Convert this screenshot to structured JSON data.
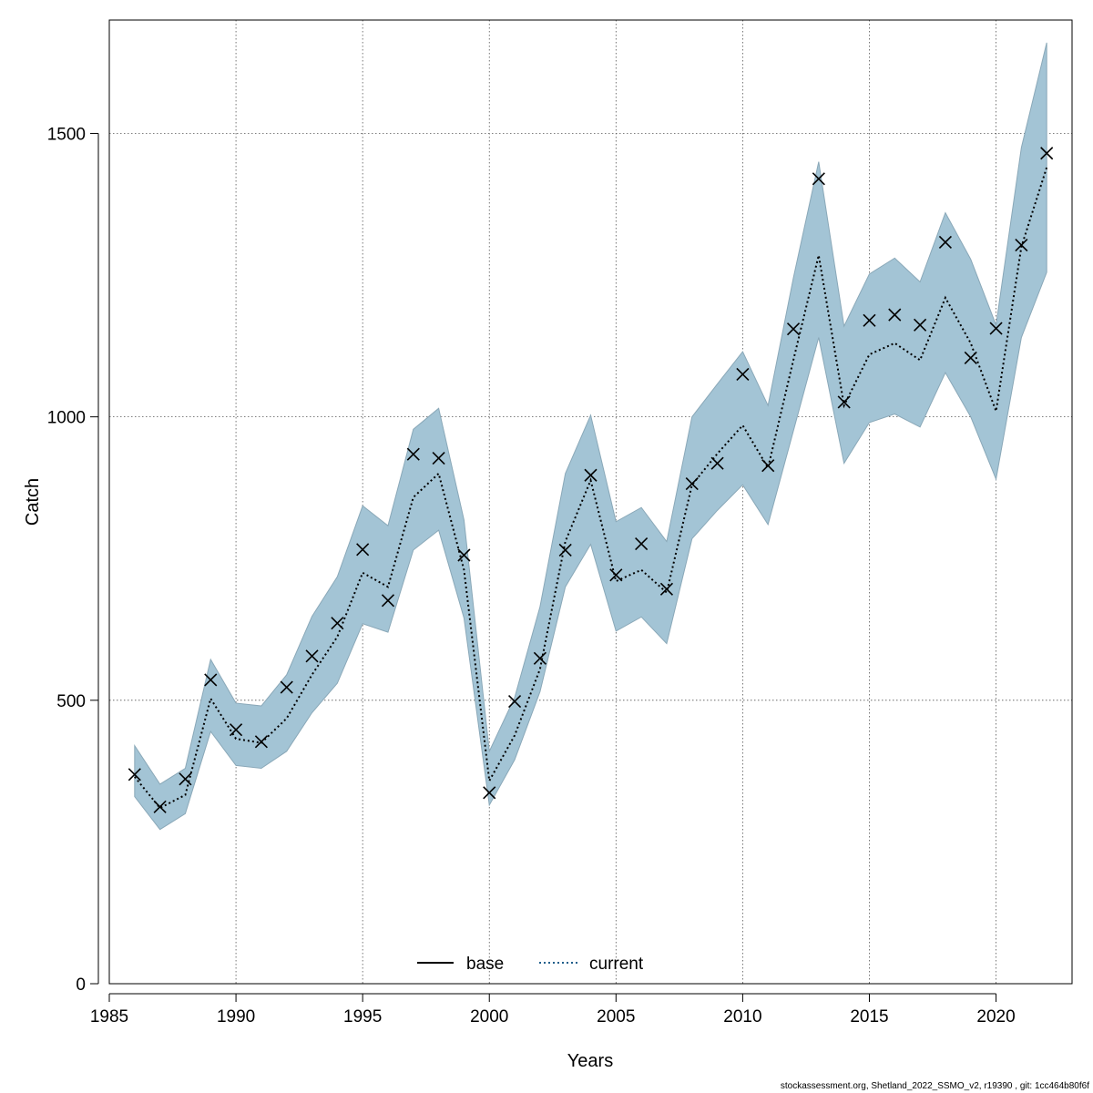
{
  "chart_data": {
    "type": "line",
    "title": "",
    "xlabel": "Years",
    "ylabel": "Catch",
    "xlim": [
      1985,
      2023
    ],
    "ylim": [
      0,
      1700
    ],
    "x_ticks": [
      1985,
      1990,
      1995,
      2000,
      2005,
      2010,
      2015,
      2020
    ],
    "y_ticks": [
      0,
      500,
      1000,
      1500
    ],
    "x_tick_labels": [
      "1985",
      "1990",
      "1995",
      "2000",
      "2005",
      "2010",
      "2015",
      "2020"
    ],
    "y_tick_labels": [
      "0",
      "500",
      "1000",
      "1500"
    ],
    "grid": true,
    "legend_position": "bottom-center",
    "legend": [
      {
        "name": "base",
        "style": "solid",
        "color": "#000000"
      },
      {
        "name": "current",
        "style": "dotted",
        "color": "#1f5f8b"
      }
    ],
    "colors": {
      "band": "#a3c4d5",
      "band_edge": "#8aa8b8",
      "line": "#000000",
      "current": "#1f5f8b",
      "marker": "#000000"
    },
    "x": [
      1986,
      1987,
      1988,
      1989,
      1990,
      1991,
      1992,
      1993,
      1994,
      1995,
      1996,
      1997,
      1998,
      1999,
      2000,
      2001,
      2002,
      2003,
      2004,
      2005,
      2006,
      2007,
      2008,
      2009,
      2010,
      2011,
      2012,
      2013,
      2014,
      2015,
      2016,
      2017,
      2018,
      2019,
      2020,
      2021,
      2022
    ],
    "series": [
      {
        "name": "current",
        "type": "line",
        "values": [
          365,
          310,
          333,
          503,
          432,
          425,
          468,
          545,
          612,
          725,
          700,
          858,
          900,
          730,
          358,
          438,
          555,
          780,
          888,
          710,
          730,
          690,
          880,
          935,
          985,
          910,
          1100,
          1285,
          1020,
          1110,
          1130,
          1100,
          1210,
          1130,
          1010,
          1300,
          1440
        ]
      },
      {
        "name": "observed",
        "type": "scatter",
        "marker": "x",
        "values": [
          369,
          312,
          361,
          536,
          448,
          427,
          523,
          578,
          636,
          766,
          676,
          934,
          927,
          756,
          337,
          498,
          574,
          765,
          897,
          721,
          776,
          696,
          882,
          918,
          1075,
          914,
          1155,
          1420,
          1026,
          1170,
          1180,
          1162,
          1308,
          1104,
          1156,
          1303,
          1465
        ]
      },
      {
        "name": "interval",
        "type": "band",
        "lower": [
          330,
          272,
          300,
          445,
          385,
          380,
          410,
          478,
          530,
          635,
          620,
          765,
          800,
          645,
          315,
          395,
          515,
          700,
          775,
          622,
          647,
          600,
          785,
          835,
          880,
          810,
          975,
          1140,
          918,
          990,
          1005,
          982,
          1078,
          1000,
          890,
          1140,
          1255
        ],
        "upper": [
          420,
          352,
          380,
          572,
          495,
          490,
          545,
          648,
          718,
          843,
          808,
          978,
          1015,
          818,
          410,
          505,
          665,
          900,
          1003,
          815,
          840,
          780,
          1000,
          1058,
          1115,
          1020,
          1245,
          1450,
          1160,
          1252,
          1280,
          1238,
          1360,
          1278,
          1162,
          1475,
          1660
        ]
      }
    ]
  },
  "footer": "stockassessment.org, Shetland_2022_SSMO_v2, r19390 , git: 1cc464b80f6f"
}
